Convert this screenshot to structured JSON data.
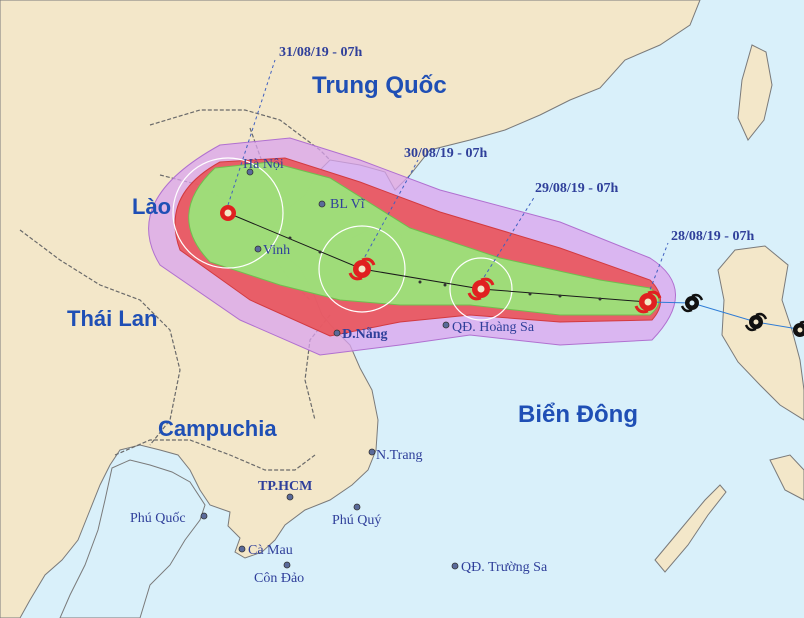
{
  "colors": {
    "sea": "#d9f0fa",
    "land": "#f3e7c9",
    "cone_outer": "#d9a3ee",
    "cone_red": "#e9545a",
    "cone_green": "#9be37a",
    "track": "#1a1a1a",
    "label": "#1f4fb5",
    "storm_symbol": "#e02020",
    "forecast_text": "#2f3f9a"
  },
  "countries": [
    {
      "name": "Trung Quốc"
    },
    {
      "name": "Lào"
    },
    {
      "name": "Thái Lan"
    },
    {
      "name": "Campuchia"
    },
    {
      "name": "Biển Đông"
    }
  ],
  "cities": [
    {
      "name": "Hà Nội"
    },
    {
      "name": "BL Vĩ"
    },
    {
      "name": "Vinh"
    },
    {
      "name": "Đ.Nẵng"
    },
    {
      "name": "QĐ. Hoàng Sa"
    },
    {
      "name": "N.Trang"
    },
    {
      "name": "TP.HCM"
    },
    {
      "name": "Phú Quốc"
    },
    {
      "name": "Phú Quý"
    },
    {
      "name": "Cà Mau"
    },
    {
      "name": "Côn Đảo"
    },
    {
      "name": "QĐ. Trường Sa"
    }
  ],
  "forecast_points": [
    {
      "time": "28/08/19 - 07h",
      "symbol": "storm-icon"
    },
    {
      "time": "29/08/19 - 07h",
      "symbol": "storm-icon"
    },
    {
      "time": "30/08/19 - 07h",
      "symbol": "storm-icon"
    },
    {
      "time": "31/08/19 - 07h",
      "symbol": "depression-icon"
    }
  ],
  "past_track_symbols": [
    "storm-icon",
    "storm-icon",
    "storm-icon"
  ]
}
